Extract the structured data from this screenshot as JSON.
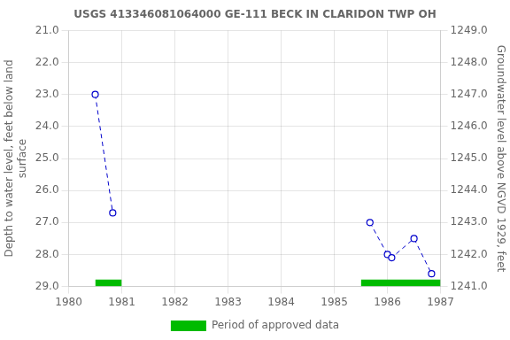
{
  "chart_data": {
    "type": "line",
    "title": "USGS 413346081064000 GE-111 BECK IN CLARIDON TWP OH",
    "series": [
      {
        "x": [
          1980.5,
          1980.83
        ],
        "values": [
          23.0,
          26.7
        ],
        "color": "#0000cc",
        "line_style": "dashed",
        "marker": "circle"
      },
      {
        "x": [
          1985.67,
          1986.0,
          1986.08,
          1986.5,
          1986.83
        ],
        "values": [
          27.0,
          28.0,
          28.1,
          27.5,
          28.6
        ],
        "color": "#0000cc",
        "line_style": "dashed",
        "marker": "circle"
      },
      {
        "name": "Period of approved data",
        "type": "bar",
        "color": "#00bb00",
        "x_start": [
          1980.5,
          1985.5
        ],
        "x_end": [
          1981.0,
          1987.0
        ],
        "y_top": 29.0,
        "y_bottom": 28.78
      }
    ],
    "xlim": [
      1980,
      1987
    ],
    "xticks": [
      1980,
      1981,
      1982,
      1983,
      1984,
      1985,
      1986,
      1987
    ],
    "ylim": [
      29.0,
      21.0
    ],
    "yticks": [
      {
        "value": 21.0,
        "label": "21.0"
      },
      {
        "value": 22.0,
        "label": "22.0"
      },
      {
        "value": 23.0,
        "label": "23.0"
      },
      {
        "value": 24.0,
        "label": "24.0"
      },
      {
        "value": 25.0,
        "label": "25.0"
      },
      {
        "value": 26.0,
        "label": "26.0"
      },
      {
        "value": 27.0,
        "label": "27.0"
      },
      {
        "value": 28.0,
        "label": "28.0"
      },
      {
        "value": 29.0,
        "label": "29.0"
      }
    ],
    "y2lim": [
      1241.0,
      1249.0
    ],
    "y2ticks": [
      {
        "value": 1241.0,
        "label": "1241.0"
      },
      {
        "value": 1242.0,
        "label": "1242.0"
      },
      {
        "value": 1243.0,
        "label": "1243.0"
      },
      {
        "value": 1244.0,
        "label": "1244.0"
      },
      {
        "value": 1245.0,
        "label": "1245.0"
      },
      {
        "value": 1246.0,
        "label": "1246.0"
      },
      {
        "value": 1247.0,
        "label": "1247.0"
      },
      {
        "value": 1248.0,
        "label": "1248.0"
      },
      {
        "value": 1249.0,
        "label": "1249.0"
      }
    ],
    "ylabel": "Depth to water level, feet below land\nsurface",
    "y2label": "Groundwater level above NGVD 1929, feet",
    "grid": true,
    "legend": "bottom"
  }
}
